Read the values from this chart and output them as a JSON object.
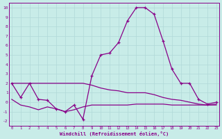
{
  "xlabel": "Windchill (Refroidissement éolien,°C)",
  "xlim_min": 0,
  "xlim_max": 23,
  "ylim_min": -2.5,
  "ylim_max": 10.5,
  "xticks": [
    0,
    1,
    2,
    3,
    4,
    5,
    6,
    7,
    8,
    9,
    10,
    11,
    12,
    13,
    14,
    15,
    16,
    17,
    18,
    19,
    20,
    21,
    22,
    23
  ],
  "yticks": [
    -2,
    -1,
    0,
    1,
    2,
    3,
    4,
    5,
    6,
    7,
    8,
    9,
    10
  ],
  "bg_color": "#c8ece8",
  "line_color": "#880088",
  "line1_x": [
    0,
    1,
    2,
    3,
    4,
    5,
    6,
    7,
    8,
    9,
    10,
    11,
    12,
    13,
    14,
    15,
    16,
    17,
    18,
    19,
    20,
    21,
    22,
    23
  ],
  "line1_y": [
    2.0,
    0.5,
    2.0,
    0.3,
    0.2,
    -0.7,
    -1.0,
    -0.3,
    -1.8,
    2.8,
    5.0,
    5.2,
    6.3,
    8.6,
    10.0,
    10.0,
    9.3,
    6.5,
    3.5,
    2.0,
    2.0,
    0.3,
    -0.2,
    0.0
  ],
  "line2_x": [
    0,
    1,
    2,
    3,
    4,
    5,
    6,
    7,
    8,
    9,
    10,
    11,
    12,
    13,
    14,
    15,
    16,
    17,
    18,
    19,
    20,
    21,
    22,
    23
  ],
  "line2_y": [
    2.0,
    2.0,
    2.0,
    2.0,
    2.0,
    2.0,
    2.0,
    2.0,
    2.0,
    1.8,
    1.5,
    1.3,
    1.2,
    1.0,
    1.0,
    1.0,
    0.8,
    0.5,
    0.3,
    0.2,
    0.0,
    -0.2,
    -0.3,
    -0.2
  ],
  "line3_x": [
    0,
    1,
    2,
    3,
    4,
    5,
    6,
    7,
    8,
    9,
    10,
    11,
    12,
    13,
    14,
    15,
    16,
    17,
    18,
    19,
    20,
    21,
    22,
    23
  ],
  "line3_y": [
    0.3,
    -0.3,
    -0.5,
    -0.8,
    -0.5,
    -0.7,
    -1.0,
    -0.8,
    -0.5,
    -0.3,
    -0.3,
    -0.3,
    -0.3,
    -0.3,
    -0.2,
    -0.2,
    -0.2,
    -0.2,
    -0.3,
    -0.3,
    -0.3,
    -0.3,
    -0.3,
    -0.3
  ]
}
